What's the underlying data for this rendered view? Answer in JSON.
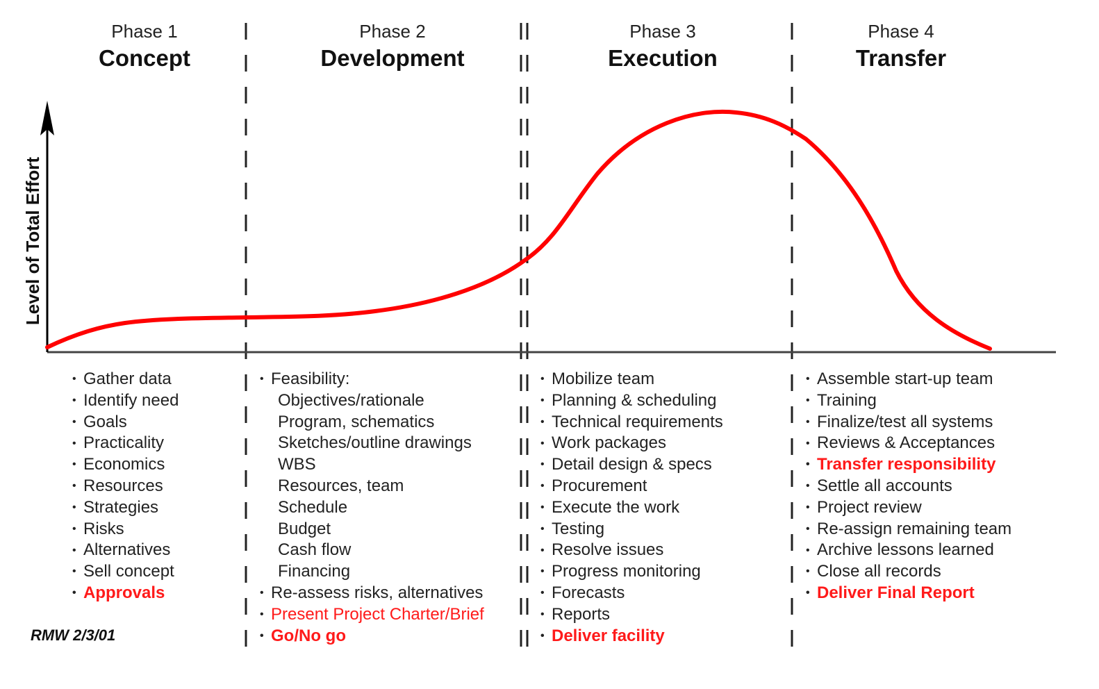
{
  "phases": [
    {
      "number": "Phase 1",
      "name": "Concept"
    },
    {
      "number": "Phase 2",
      "name": "Development"
    },
    {
      "number": "Phase 3",
      "name": "Execution"
    },
    {
      "number": "Phase 4",
      "name": "Transfer"
    }
  ],
  "axis": {
    "ylabel": "Level of Total Effort"
  },
  "activities": {
    "concept": [
      {
        "text": "Gather data"
      },
      {
        "text": "Identify need"
      },
      {
        "text": "Goals"
      },
      {
        "text": "Practicality"
      },
      {
        "text": "Economics"
      },
      {
        "text": "Resources"
      },
      {
        "text": "Strategies"
      },
      {
        "text": "Risks"
      },
      {
        "text": "Alternatives"
      },
      {
        "text": "Sell concept"
      },
      {
        "text": "Approvals",
        "highlight": "bold"
      }
    ],
    "development": [
      {
        "text": "Feasibility:"
      },
      {
        "text": "Objectives/rationale",
        "sub": true
      },
      {
        "text": "Program, schematics",
        "sub": true
      },
      {
        "text": "Sketches/outline drawings",
        "sub": true
      },
      {
        "text": "WBS",
        "sub": true
      },
      {
        "text": "Resources, team",
        "sub": true
      },
      {
        "text": "Schedule",
        "sub": true
      },
      {
        "text": "Budget",
        "sub": true
      },
      {
        "text": "Cash flow",
        "sub": true
      },
      {
        "text": "Financing",
        "sub": true
      },
      {
        "text": "Re-assess risks, alternatives"
      },
      {
        "text": "Present Project Charter/Brief",
        "highlight": "normal"
      },
      {
        "text": "Go/No go",
        "highlight": "bold"
      }
    ],
    "execution": [
      {
        "text": "Mobilize team"
      },
      {
        "text": "Planning & scheduling"
      },
      {
        "text": "Technical requirements"
      },
      {
        "text": "Work packages"
      },
      {
        "text": "Detail design & specs"
      },
      {
        "text": "Procurement"
      },
      {
        "text": "Execute the work"
      },
      {
        "text": "Testing"
      },
      {
        "text": "Resolve issues"
      },
      {
        "text": "Progress monitoring"
      },
      {
        "text": "Forecasts"
      },
      {
        "text": "Reports"
      },
      {
        "text": "Deliver facility",
        "highlight": "bold"
      }
    ],
    "transfer": [
      {
        "text": "Assemble start-up team"
      },
      {
        "text": "Training"
      },
      {
        "text": "Finalize/test all systems"
      },
      {
        "text": "Reviews & Acceptances"
      },
      {
        "text": "Transfer responsibility",
        "highlight": "bold"
      },
      {
        "text": "Settle all accounts"
      },
      {
        "text": "Project review"
      },
      {
        "text": "Re-assign remaining team"
      },
      {
        "text": "Archive lessons learned"
      },
      {
        "text": "Close all records"
      },
      {
        "text": "Deliver Final Report",
        "highlight": "bold"
      }
    ]
  },
  "credit": "RMW 2/3/01",
  "colors": {
    "curve": "#ff0000",
    "highlight": "#ff1a1a",
    "text": "#1a1a1a",
    "divider": "#222222"
  },
  "chart_data": {
    "type": "line",
    "title": "Project Life Cycle — Level of Total Effort by Phase",
    "xlabel": "",
    "ylabel": "Level of Total Effort",
    "categories": [
      "Concept",
      "Development",
      "Execution",
      "Transfer"
    ],
    "x": [
      0,
      0.08,
      0.2,
      0.35,
      0.5,
      0.6,
      0.74,
      0.84,
      0.9,
      1.0
    ],
    "series": [
      {
        "name": "Level of Total Effort",
        "values": [
          0,
          0.11,
          0.14,
          0.15,
          0.22,
          0.38,
          1.0,
          0.95,
          0.55,
          0
        ]
      }
    ],
    "ylim": [
      0,
      1
    ],
    "grid": false
  }
}
